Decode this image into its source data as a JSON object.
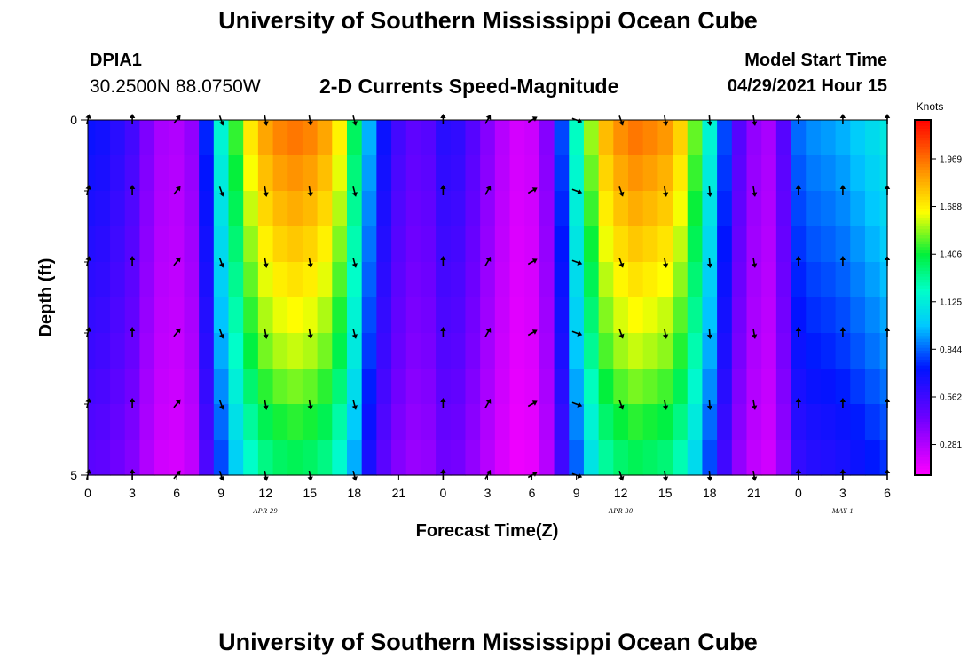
{
  "header": {
    "title": "University of Southern Mississippi Ocean Cube",
    "station_id": "DPIA1",
    "station_coords": "30.2500N  88.0750W",
    "subtitle": "2-D Currents Speed-Magnitude",
    "model_start_label": "Model Start Time",
    "model_start_value": "04/29/2021 Hour 15"
  },
  "footer": {
    "title": "University of Southern Mississippi Ocean Cube"
  },
  "chart_data": {
    "type": "heatmap",
    "title": "2-D Currents Speed-Magnitude",
    "xlabel": "Forecast Time(Z)",
    "ylabel": "Depth (ft)",
    "x_hours": [
      0,
      54
    ],
    "x_tick_labels": [
      "0",
      "3",
      "6",
      "9",
      "12",
      "15",
      "18",
      "21",
      "0",
      "3",
      "6",
      "9",
      "12",
      "15",
      "18",
      "21",
      "0",
      "3",
      "6"
    ],
    "y_range": [
      0,
      5
    ],
    "y_tick_labels": [
      "0",
      "5"
    ],
    "date_labels": [
      {
        "text": "APR 29",
        "hour": 12
      },
      {
        "text": "APR 30",
        "hour": 36
      },
      {
        "text": "MAY 1",
        "hour": 51
      }
    ],
    "colorbar": {
      "unit": "Knots",
      "ticks": [
        "1.969",
        "1.688",
        "1.406",
        "1.125",
        "0.844",
        "0.562",
        "0.281"
      ],
      "tick_values": [
        1.969,
        1.688,
        1.406,
        1.125,
        0.844,
        0.562,
        0.281
      ],
      "range": [
        0.1,
        2.2
      ]
    },
    "speed_by_hour": [
      0.7,
      0.68,
      0.62,
      0.55,
      0.4,
      0.3,
      0.28,
      0.35,
      0.75,
      1.15,
      1.45,
      1.7,
      1.85,
      1.92,
      1.95,
      1.92,
      1.85,
      1.68,
      1.35,
      0.95,
      0.7,
      0.55,
      0.48,
      0.5,
      0.62,
      0.6,
      0.5,
      0.38,
      0.27,
      0.2,
      0.22,
      0.38,
      0.8,
      1.2,
      1.55,
      1.8,
      1.9,
      1.95,
      1.92,
      1.88,
      1.75,
      1.5,
      1.15,
      0.8,
      0.5,
      0.35,
      0.3,
      0.5,
      0.85,
      0.9,
      0.92,
      0.95,
      1.0,
      1.05,
      1.1
    ],
    "depth_factors": [
      1.0,
      0.97,
      0.94,
      0.91,
      0.88,
      0.85,
      0.82,
      0.78,
      0.74,
      0.7
    ],
    "vector_rows_depth": [
      0,
      1,
      2,
      3,
      4,
      5
    ],
    "vector_hours": [
      0,
      3,
      6,
      9,
      12,
      15,
      18,
      21,
      24,
      27,
      30,
      33,
      36,
      39,
      42,
      45,
      48,
      51,
      54
    ],
    "vector_angles_deg": [
      15,
      0,
      40,
      160,
      170,
      170,
      165,
      null,
      0,
      30,
      60,
      110,
      160,
      170,
      175,
      170,
      0,
      0,
      0
    ]
  }
}
